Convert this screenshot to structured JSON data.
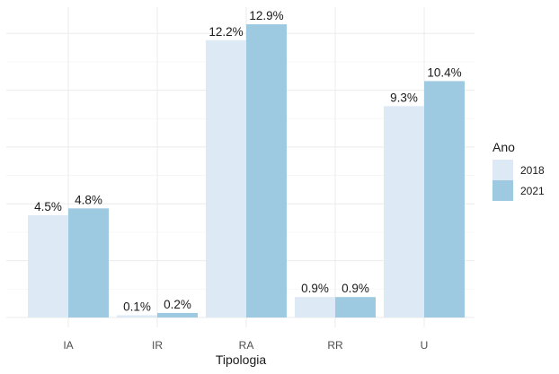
{
  "chart_data": {
    "type": "bar",
    "categories": [
      "IA",
      "IR",
      "RA",
      "RR",
      "U"
    ],
    "series": [
      {
        "name": "2018",
        "values": [
          4.5,
          0.1,
          12.2,
          0.9,
          9.3
        ],
        "labels": [
          "4.5%",
          "0.1%",
          "12.2%",
          "0.9%",
          "9.3%"
        ],
        "color": "#dde9f5"
      },
      {
        "name": "2021",
        "values": [
          4.8,
          0.2,
          12.9,
          0.9,
          10.4
        ],
        "labels": [
          "4.8%",
          "0.2%",
          "12.9%",
          "0.9%",
          "10.4%"
        ],
        "color": "#9ecae1"
      }
    ],
    "xlabel": "Tipologia",
    "ylabel": "",
    "ylim": [
      0,
      13.1
    ],
    "grid": true,
    "legend": {
      "title": "Ano",
      "position": "right"
    }
  }
}
